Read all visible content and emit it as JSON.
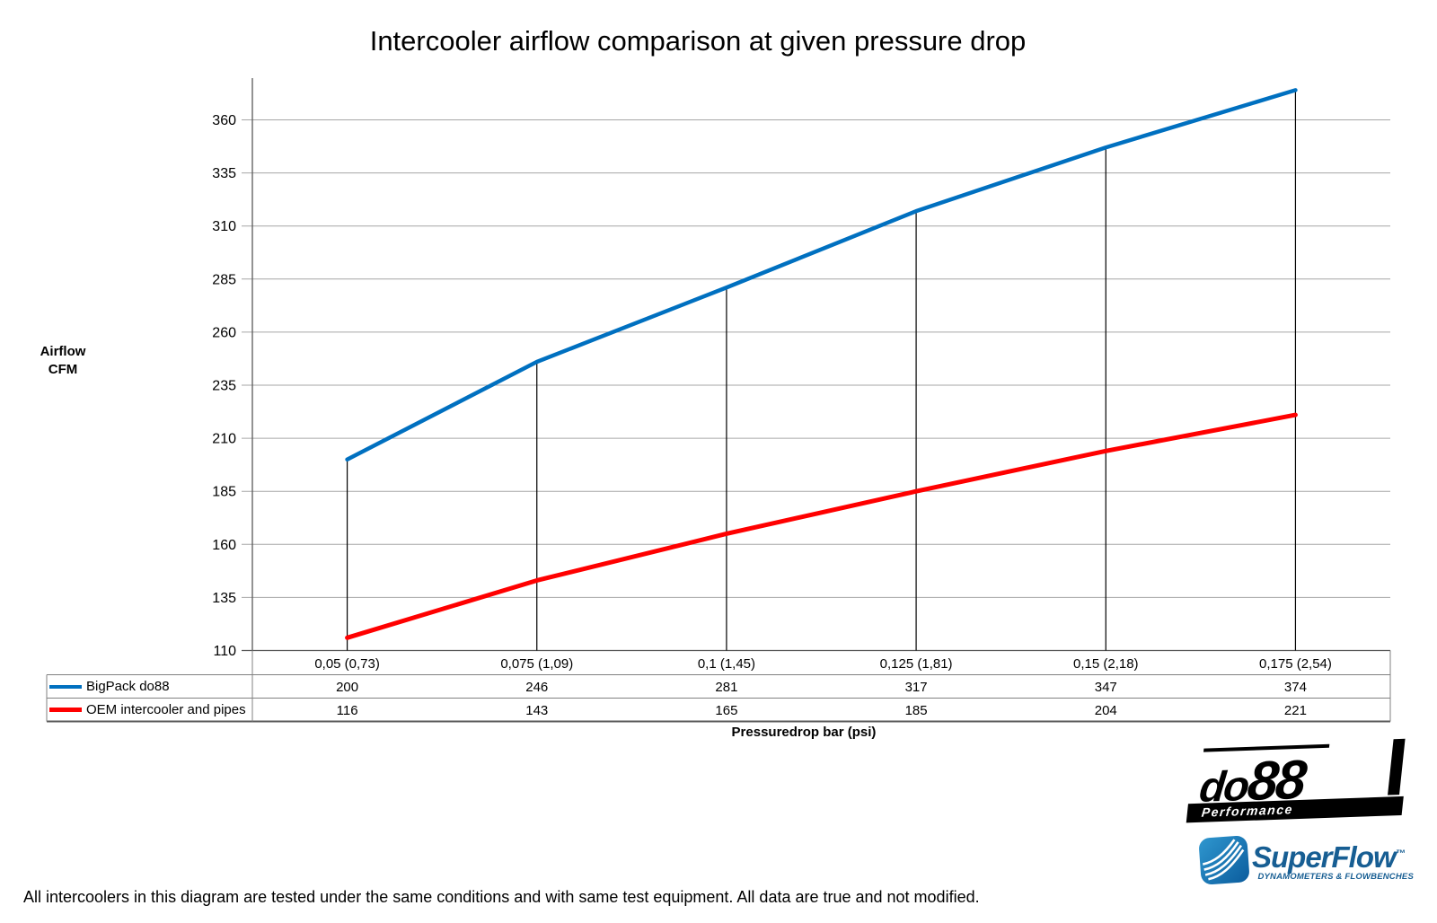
{
  "page": {
    "footer": "All intercoolers in this diagram are tested under the same conditions and with same test equipment. All data are true and not modified."
  },
  "chart_data": {
    "type": "line",
    "title": "Intercooler airflow comparison at given pressure drop",
    "xlabel": "Pressuredrop bar (psi)",
    "ylabel_lines": [
      "Airflow",
      "CFM"
    ],
    "categories": [
      "0,05 (0,73)",
      "0,075 (1,09)",
      "0,1 (1,45)",
      "0,125 (1,81)",
      "0,15 (2,18)",
      "0,175 (2,54)"
    ],
    "series": [
      {
        "name": "BigPack do88",
        "color": "#0070C0",
        "values": [
          200,
          246,
          281,
          317,
          347,
          374
        ]
      },
      {
        "name": "OEM intercooler and pipes",
        "color": "#FF0000",
        "values": [
          116,
          143,
          165,
          185,
          204,
          221
        ]
      }
    ],
    "yticks": [
      110,
      135,
      160,
      185,
      210,
      235,
      260,
      285,
      310,
      335,
      360
    ],
    "ylim": [
      110,
      380
    ],
    "grid": "horizontal",
    "legend_position": "table-left",
    "drop_lines_to_series": "BigPack do88",
    "gridline_color": "#A6A6A6",
    "axis_color": "#595959"
  },
  "logos": {
    "do88": {
      "brand_do": "do",
      "brand_88": "88",
      "tagline": "Performance",
      "color": "#000000"
    },
    "superflow": {
      "name": "SuperFlow",
      "tm": "™",
      "tagline": "DYNAMOMETERS & FLOWBENCHES",
      "color": "#175E93"
    }
  }
}
